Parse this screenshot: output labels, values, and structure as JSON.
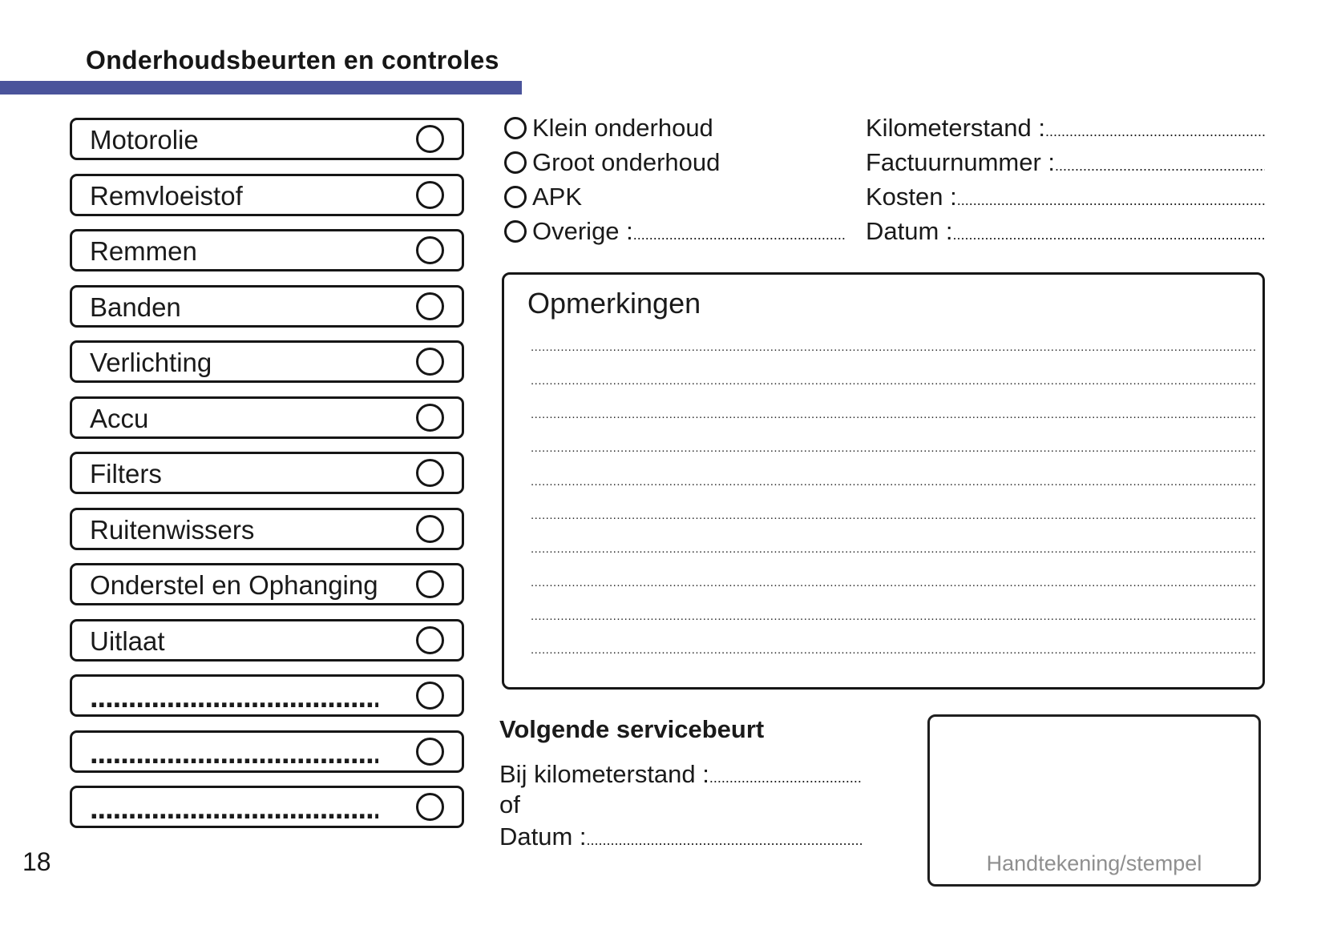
{
  "page": {
    "title": "Onderhoudsbeurten en controles",
    "page_number": "18",
    "accent_color": "#4a549b"
  },
  "checklist": {
    "items": [
      {
        "label": "Motorolie"
      },
      {
        "label": "Remvloeistof"
      },
      {
        "label": "Remmen"
      },
      {
        "label": "Banden"
      },
      {
        "label": "Verlichting"
      },
      {
        "label": "Accu"
      },
      {
        "label": "Filters"
      },
      {
        "label": "Ruitenwissers"
      },
      {
        "label": "Onderstel en Ophanging"
      },
      {
        "label": "Uitlaat"
      },
      {
        "label": "",
        "blank": true
      },
      {
        "label": "",
        "blank": true
      },
      {
        "label": "",
        "blank": true
      }
    ]
  },
  "service_types": {
    "options": [
      {
        "label": "Klein onderhoud"
      },
      {
        "label": "Groot onderhoud"
      },
      {
        "label": "APK"
      },
      {
        "label": "Overige :",
        "has_line": true
      }
    ]
  },
  "invoice_fields": {
    "fields": [
      {
        "label": "Kilometerstand :"
      },
      {
        "label": "Factuurnummer :"
      },
      {
        "label": "Kosten :"
      },
      {
        "label": "Datum :"
      }
    ]
  },
  "remarks": {
    "title": "Opmerkingen",
    "line_count": 10
  },
  "next_service": {
    "title": "Volgende servicebeurt",
    "rows": [
      {
        "label": "Bij kilometerstand :",
        "has_line": true
      },
      {
        "label": "of",
        "has_line": false
      },
      {
        "label": "Datum :",
        "has_line": true
      }
    ]
  },
  "signature": {
    "label": "Handtekening/stempel"
  }
}
